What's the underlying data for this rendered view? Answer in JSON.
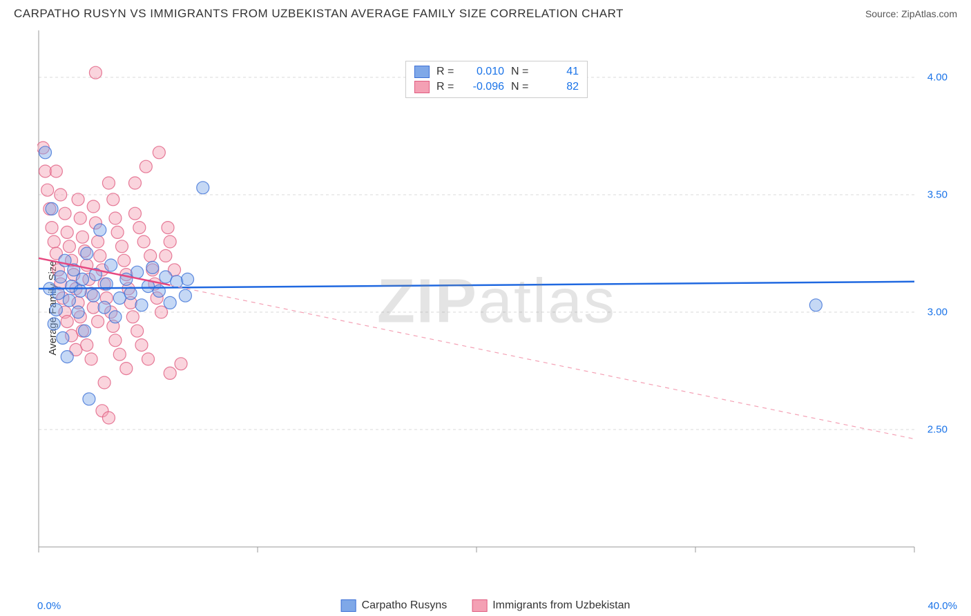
{
  "title": "CARPATHO RUSYN VS IMMIGRANTS FROM UZBEKISTAN AVERAGE FAMILY SIZE CORRELATION CHART",
  "source": "Source: ZipAtlas.com",
  "watermark_left": "ZIP",
  "watermark_right": "atlas",
  "y_axis_label": "Average Family Size",
  "chart": {
    "type": "scatter",
    "background_color": "#ffffff",
    "grid_color": "#d8d8d8",
    "axis_color": "#999999",
    "xlim": [
      0.0,
      40.0
    ],
    "ylim": [
      2.0,
      4.2
    ],
    "x_tick_positions": [
      0,
      10,
      20,
      30,
      40
    ],
    "x_tick_labels_shown": {
      "min": "0.0%",
      "max": "40.0%"
    },
    "y_tick_positions": [
      2.5,
      3.0,
      3.5,
      4.0
    ],
    "y_tick_labels": [
      "2.50",
      "3.00",
      "3.50",
      "4.00"
    ],
    "marker_radius": 9,
    "marker_opacity": 0.45,
    "series": [
      {
        "name": "Carpatho Rusyns",
        "color_fill": "#7fa8e8",
        "color_stroke": "#3b6fd6",
        "r_label": "R =",
        "r_value": "0.010",
        "n_label": "N =",
        "n_value": "41",
        "trend": {
          "solid_until_x": 40.0,
          "y_start": 3.1,
          "y_end": 3.13,
          "line_width": 2.5,
          "line_color": "#1f68e0"
        },
        "points": [
          [
            0.3,
            3.68
          ],
          [
            0.5,
            3.1
          ],
          [
            0.6,
            3.44
          ],
          [
            0.7,
            2.95
          ],
          [
            0.8,
            3.01
          ],
          [
            0.9,
            3.08
          ],
          [
            1.0,
            3.15
          ],
          [
            1.1,
            2.89
          ],
          [
            1.2,
            3.22
          ],
          [
            1.3,
            2.81
          ],
          [
            1.4,
            3.05
          ],
          [
            1.5,
            3.11
          ],
          [
            1.6,
            3.18
          ],
          [
            1.8,
            3.0
          ],
          [
            1.9,
            3.09
          ],
          [
            2.0,
            3.14
          ],
          [
            2.1,
            2.92
          ],
          [
            2.2,
            3.25
          ],
          [
            2.3,
            2.63
          ],
          [
            2.5,
            3.07
          ],
          [
            2.6,
            3.16
          ],
          [
            2.8,
            3.35
          ],
          [
            3.0,
            3.02
          ],
          [
            3.1,
            3.12
          ],
          [
            3.3,
            3.2
          ],
          [
            3.5,
            2.98
          ],
          [
            3.7,
            3.06
          ],
          [
            4.0,
            3.14
          ],
          [
            4.2,
            3.08
          ],
          [
            4.5,
            3.17
          ],
          [
            4.7,
            3.03
          ],
          [
            5.0,
            3.11
          ],
          [
            5.2,
            3.19
          ],
          [
            5.5,
            3.09
          ],
          [
            5.8,
            3.15
          ],
          [
            6.0,
            3.04
          ],
          [
            6.3,
            3.13
          ],
          [
            6.7,
            3.07
          ],
          [
            7.5,
            3.53
          ],
          [
            6.8,
            3.14
          ],
          [
            35.5,
            3.03
          ]
        ]
      },
      {
        "name": "Immigrants from Uzbekistan",
        "color_fill": "#f4a0b4",
        "color_stroke": "#e05b80",
        "r_label": "R =",
        "r_value": "-0.096",
        "n_label": "N =",
        "n_value": "82",
        "trend": {
          "solid_until_x": 6.0,
          "y_start": 3.23,
          "y_end": 2.46,
          "y_at_solid_end": 3.115,
          "line_width": 2.5,
          "line_color": "#e64880",
          "dash_color": "#f4a0b4"
        },
        "points": [
          [
            0.2,
            3.7
          ],
          [
            0.3,
            3.6
          ],
          [
            0.4,
            3.52
          ],
          [
            0.5,
            3.44
          ],
          [
            0.6,
            3.36
          ],
          [
            0.7,
            3.3
          ],
          [
            0.8,
            3.25
          ],
          [
            0.8,
            3.6
          ],
          [
            0.9,
            3.18
          ],
          [
            1.0,
            3.12
          ],
          [
            1.0,
            3.5
          ],
          [
            1.1,
            3.06
          ],
          [
            1.2,
            3.42
          ],
          [
            1.2,
            3.0
          ],
          [
            1.3,
            2.96
          ],
          [
            1.3,
            3.34
          ],
          [
            1.4,
            3.28
          ],
          [
            1.5,
            2.9
          ],
          [
            1.5,
            3.22
          ],
          [
            1.6,
            3.16
          ],
          [
            1.7,
            3.1
          ],
          [
            1.7,
            2.84
          ],
          [
            1.8,
            3.48
          ],
          [
            1.8,
            3.04
          ],
          [
            1.9,
            2.98
          ],
          [
            1.9,
            3.4
          ],
          [
            2.0,
            3.32
          ],
          [
            2.0,
            2.92
          ],
          [
            2.1,
            3.26
          ],
          [
            2.2,
            2.86
          ],
          [
            2.2,
            3.2
          ],
          [
            2.3,
            3.14
          ],
          [
            2.4,
            2.8
          ],
          [
            2.4,
            3.08
          ],
          [
            2.5,
            3.02
          ],
          [
            2.5,
            3.45
          ],
          [
            2.6,
            3.38
          ],
          [
            2.7,
            2.96
          ],
          [
            2.7,
            3.3
          ],
          [
            2.8,
            3.24
          ],
          [
            2.9,
            2.58
          ],
          [
            2.9,
            3.18
          ],
          [
            3.0,
            3.12
          ],
          [
            3.0,
            2.7
          ],
          [
            3.1,
            3.06
          ],
          [
            3.2,
            2.55
          ],
          [
            3.2,
            3.55
          ],
          [
            3.3,
            3.0
          ],
          [
            3.4,
            3.48
          ],
          [
            3.4,
            2.94
          ],
          [
            3.5,
            3.4
          ],
          [
            3.5,
            2.88
          ],
          [
            3.6,
            3.34
          ],
          [
            2.6,
            4.02
          ],
          [
            3.7,
            2.82
          ],
          [
            3.8,
            3.28
          ],
          [
            3.9,
            3.22
          ],
          [
            4.0,
            2.76
          ],
          [
            4.0,
            3.16
          ],
          [
            4.1,
            3.1
          ],
          [
            4.2,
            3.04
          ],
          [
            4.3,
            2.98
          ],
          [
            4.4,
            3.42
          ],
          [
            4.5,
            2.92
          ],
          [
            4.6,
            3.36
          ],
          [
            4.7,
            2.86
          ],
          [
            4.8,
            3.3
          ],
          [
            4.9,
            3.62
          ],
          [
            5.0,
            2.8
          ],
          [
            5.1,
            3.24
          ],
          [
            5.2,
            3.18
          ],
          [
            5.3,
            3.12
          ],
          [
            5.5,
            3.68
          ],
          [
            5.4,
            3.06
          ],
          [
            5.6,
            3.0
          ],
          [
            5.8,
            3.24
          ],
          [
            6.0,
            3.3
          ],
          [
            6.0,
            2.74
          ],
          [
            6.2,
            3.18
          ],
          [
            6.5,
            2.78
          ],
          [
            5.9,
            3.36
          ],
          [
            4.4,
            3.55
          ]
        ]
      }
    ]
  },
  "labels": {
    "legend_series1": "Carpatho Rusyns",
    "legend_series2": "Immigrants from Uzbekistan"
  }
}
